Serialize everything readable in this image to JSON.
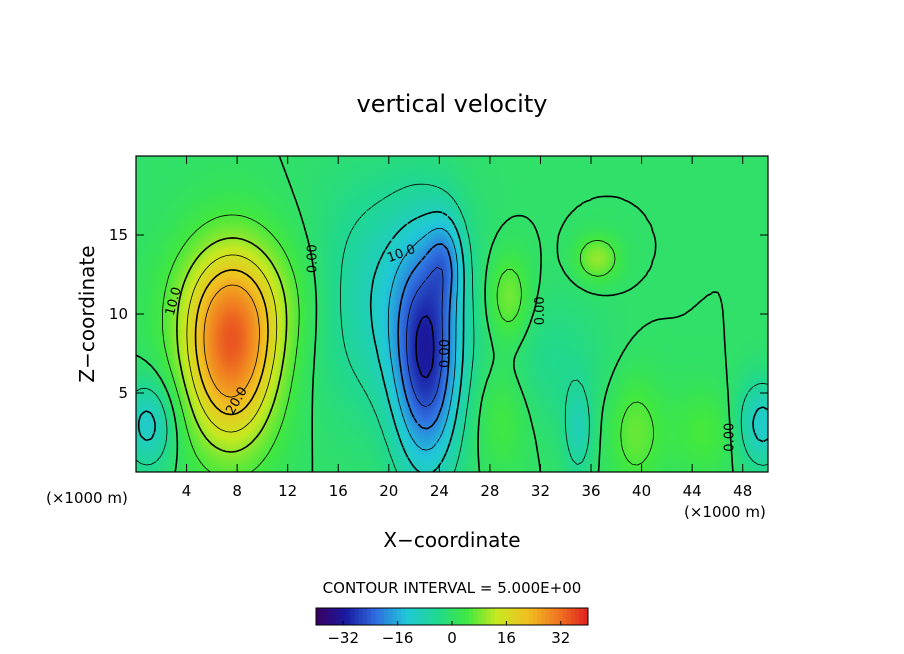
{
  "chart_data": {
    "type": "heatmap",
    "title": "vertical velocity",
    "xlabel": "X−coordinate",
    "ylabel": "Z−coordinate",
    "x_unit_left": "(×1000 m)",
    "x_unit_right": "(×1000 m)",
    "xlim": [
      0,
      50
    ],
    "ylim": [
      0,
      20
    ],
    "x_ticks": [
      4,
      8,
      12,
      16,
      20,
      24,
      28,
      32,
      36,
      40,
      44,
      48
    ],
    "y_ticks": [
      5,
      10,
      15
    ],
    "contour_interval_text": "CONTOUR INTERVAL = 5.000E+00",
    "contour_labels": [
      {
        "text": "10.0",
        "x": 3.0,
        "y": 10.8,
        "rot": -75
      },
      {
        "text": "20.0",
        "x": 8.0,
        "y": 4.5,
        "rot": -60
      },
      {
        "text": "0.00",
        "x": 14.0,
        "y": 13.5,
        "rot": -90
      },
      {
        "text": "10.0",
        "x": 21.0,
        "y": 13.8,
        "rot": -20
      },
      {
        "text": "0.00",
        "x": 24.5,
        "y": 7.5,
        "rot": -90
      },
      {
        "text": "0.00",
        "x": 32.0,
        "y": 10.2,
        "rot": -90
      },
      {
        "text": "0.00",
        "x": 47.0,
        "y": 2.2,
        "rot": -90
      }
    ],
    "features": [
      {
        "x": 7.5,
        "y": 7.5,
        "sx": 2.6,
        "sy": 4.2,
        "a": 30
      },
      {
        "x": 8.5,
        "y": 11.0,
        "sx": 4.0,
        "sy": 3.0,
        "a": 8
      },
      {
        "x": 23.0,
        "y": 7.0,
        "sx": 1.8,
        "sy": 5.0,
        "a": -26
      },
      {
        "x": 20.0,
        "y": 11.0,
        "sx": 4.0,
        "sy": 5.0,
        "a": -10
      },
      {
        "x": 24.5,
        "y": 13.5,
        "sx": 1.0,
        "sy": 2.0,
        "a": -10
      },
      {
        "x": 1.0,
        "y": 3.0,
        "sx": 1.5,
        "sy": 2.0,
        "a": -12
      },
      {
        "x": 49.5,
        "y": 3.0,
        "sx": 1.5,
        "sy": 2.0,
        "a": -12
      },
      {
        "x": 29.5,
        "y": 11.0,
        "sx": 1.2,
        "sy": 2.0,
        "a": 9
      },
      {
        "x": 36.5,
        "y": 13.5,
        "sx": 1.2,
        "sy": 1.0,
        "a": 10
      },
      {
        "x": 39.5,
        "y": 2.5,
        "sx": 1.5,
        "sy": 2.5,
        "a": 7
      },
      {
        "x": 45.0,
        "y": 2.5,
        "sx": 2.0,
        "sy": 2.0,
        "a": 5
      },
      {
        "x": 35.0,
        "y": 2.5,
        "sx": 0.8,
        "sy": 2.0,
        "a": -8
      },
      {
        "x": 29.0,
        "y": 3.5,
        "sx": 1.5,
        "sy": 2.5,
        "a": 5
      },
      {
        "x": 33.0,
        "y": 7.0,
        "sx": 3.0,
        "sy": 3.0,
        "a": -4
      }
    ],
    "colorbar": {
      "vmin": -40,
      "vmax": 40,
      "ticks": [
        -32,
        -16,
        0,
        16,
        32
      ],
      "tick_labels": [
        "−32",
        "−16",
        "0",
        "16",
        "32"
      ],
      "colors": [
        "#3a0060",
        "#1a1aa0",
        "#2f6fe0",
        "#20c8d8",
        "#20d890",
        "#40e840",
        "#c8e820",
        "#f0c020",
        "#f07820",
        "#e02020"
      ]
    }
  }
}
